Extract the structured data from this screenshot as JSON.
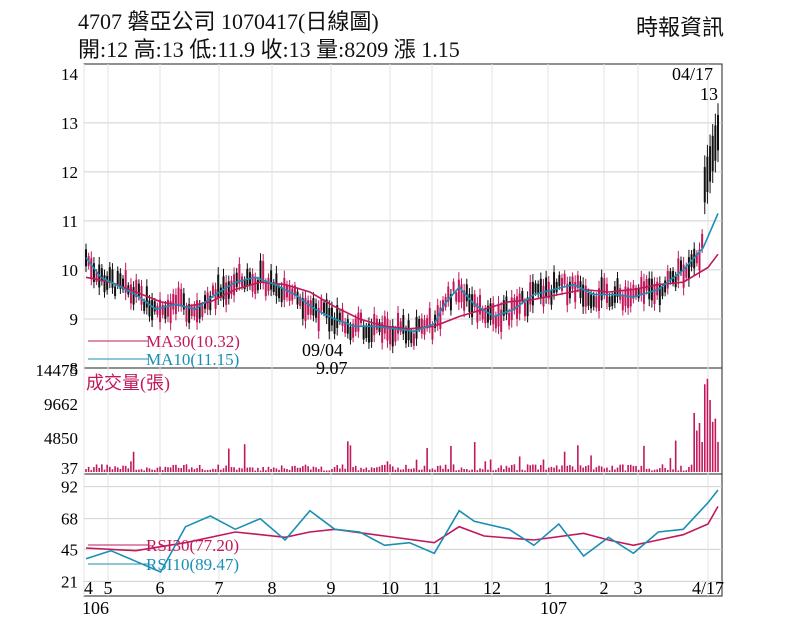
{
  "header": {
    "title": "4707  磐亞公司 1070417(日線圖)",
    "ohlc": "開:12 高:13 低:11.9 收:13 量:8209 漲 1.15",
    "source": "時報資訊"
  },
  "chart_data": [
    {
      "type": "candlestick",
      "panel": "price",
      "yticks": [
        "14",
        "13",
        "12",
        "11",
        "10",
        "9",
        "8"
      ],
      "ylim": [
        8,
        14.2
      ],
      "annotations": {
        "last_date": "04/17",
        "last_close": "13",
        "low_date": "09/04",
        "low_value": "9.07"
      },
      "legend": [
        {
          "name": "MA30(10.32)",
          "color": "#c2185b"
        },
        {
          "name": "MA10(11.15)",
          "color": "#1a8fb5"
        }
      ],
      "series": [
        {
          "name": "MA30",
          "color": "#c2185b",
          "points": [
            [
              0,
              9.85
            ],
            [
              0.05,
              9.75
            ],
            [
              0.1,
              9.55
            ],
            [
              0.15,
              9.35
            ],
            [
              0.2,
              9.25
            ],
            [
              0.25,
              9.35
            ],
            [
              0.3,
              9.6
            ],
            [
              0.35,
              9.75
            ],
            [
              0.4,
              9.7
            ],
            [
              0.45,
              9.55
            ],
            [
              0.5,
              9.25
            ],
            [
              0.55,
              9.0
            ],
            [
              0.6,
              8.85
            ],
            [
              0.65,
              8.8
            ],
            [
              0.7,
              8.85
            ],
            [
              0.75,
              9.05
            ],
            [
              0.8,
              9.2
            ],
            [
              0.85,
              9.35
            ],
            [
              0.9,
              9.4
            ],
            [
              0.95,
              9.5
            ],
            [
              1.0,
              9.6
            ],
            [
              1.05,
              9.55
            ],
            [
              1.1,
              9.6
            ],
            [
              1.15,
              9.7
            ],
            [
              1.2,
              9.75
            ],
            [
              1.25,
              10.05
            ],
            [
              1.27,
              10.32
            ]
          ]
        },
        {
          "name": "MA10",
          "color": "#1a8fb5",
          "points": [
            [
              0,
              10.25
            ],
            [
              0.03,
              9.85
            ],
            [
              0.06,
              9.7
            ],
            [
              0.1,
              9.5
            ],
            [
              0.14,
              9.2
            ],
            [
              0.18,
              9.3
            ],
            [
              0.22,
              9.2
            ],
            [
              0.26,
              9.5
            ],
            [
              0.3,
              9.75
            ],
            [
              0.34,
              9.85
            ],
            [
              0.38,
              9.7
            ],
            [
              0.42,
              9.5
            ],
            [
              0.46,
              9.2
            ],
            [
              0.5,
              9.0
            ],
            [
              0.54,
              8.85
            ],
            [
              0.58,
              8.85
            ],
            [
              0.62,
              8.8
            ],
            [
              0.66,
              8.75
            ],
            [
              0.7,
              8.9
            ],
            [
              0.72,
              9.3
            ],
            [
              0.75,
              9.65
            ],
            [
              0.78,
              9.3
            ],
            [
              0.82,
              9.05
            ],
            [
              0.86,
              9.2
            ],
            [
              0.9,
              9.5
            ],
            [
              0.94,
              9.6
            ],
            [
              0.98,
              9.7
            ],
            [
              1.02,
              9.5
            ],
            [
              1.06,
              9.5
            ],
            [
              1.1,
              9.45
            ],
            [
              1.15,
              9.6
            ],
            [
              1.2,
              10.0
            ],
            [
              1.24,
              10.45
            ],
            [
              1.27,
              11.15
            ]
          ]
        }
      ]
    },
    {
      "type": "bar",
      "panel": "volume",
      "label": "成交量(張)",
      "yticks": [
        "14475",
        "9662",
        "4850",
        "37"
      ],
      "ylim": [
        0,
        14475
      ]
    },
    {
      "type": "line",
      "panel": "rsi",
      "yticks": [
        "92",
        "68",
        "45",
        "21"
      ],
      "ylim": [
        10,
        100
      ],
      "legend": [
        {
          "name": "RSI30(77.20)",
          "color": "#c2185b"
        },
        {
          "name": "RSI10(89.47)",
          "color": "#1a8fb5"
        }
      ],
      "series": [
        {
          "name": "RSI30",
          "color": "#c2185b",
          "points": [
            [
              0,
              46
            ],
            [
              0.1,
              44
            ],
            [
              0.2,
              50
            ],
            [
              0.3,
              58
            ],
            [
              0.4,
              54
            ],
            [
              0.45,
              58
            ],
            [
              0.5,
              60
            ],
            [
              0.6,
              55
            ],
            [
              0.7,
              50
            ],
            [
              0.75,
              62
            ],
            [
              0.8,
              55
            ],
            [
              0.9,
              52
            ],
            [
              1.0,
              57
            ],
            [
              1.05,
              52
            ],
            [
              1.1,
              48
            ],
            [
              1.15,
              52
            ],
            [
              1.2,
              56
            ],
            [
              1.25,
              64
            ],
            [
              1.27,
              77.2
            ]
          ]
        },
        {
          "name": "RSI10",
          "color": "#1a8fb5",
          "points": [
            [
              0,
              38
            ],
            [
              0.05,
              44
            ],
            [
              0.1,
              36
            ],
            [
              0.15,
              28
            ],
            [
              0.2,
              62
            ],
            [
              0.25,
              70
            ],
            [
              0.3,
              60
            ],
            [
              0.35,
              68
            ],
            [
              0.4,
              52
            ],
            [
              0.45,
              74
            ],
            [
              0.5,
              60
            ],
            [
              0.55,
              58
            ],
            [
              0.6,
              48
            ],
            [
              0.65,
              50
            ],
            [
              0.7,
              42
            ],
            [
              0.75,
              74
            ],
            [
              0.78,
              66
            ],
            [
              0.85,
              60
            ],
            [
              0.9,
              48
            ],
            [
              0.95,
              64
            ],
            [
              1.0,
              40
            ],
            [
              1.05,
              54
            ],
            [
              1.1,
              42
            ],
            [
              1.15,
              58
            ],
            [
              1.2,
              60
            ],
            [
              1.25,
              80
            ],
            [
              1.27,
              89.47
            ]
          ]
        }
      ]
    }
  ],
  "xaxis": {
    "months": [
      "4",
      "5",
      "6",
      "7",
      "8",
      "9",
      "10",
      "11",
      "12",
      "1",
      "2",
      "3",
      "4/17"
    ],
    "years": [
      "106",
      "107"
    ]
  }
}
